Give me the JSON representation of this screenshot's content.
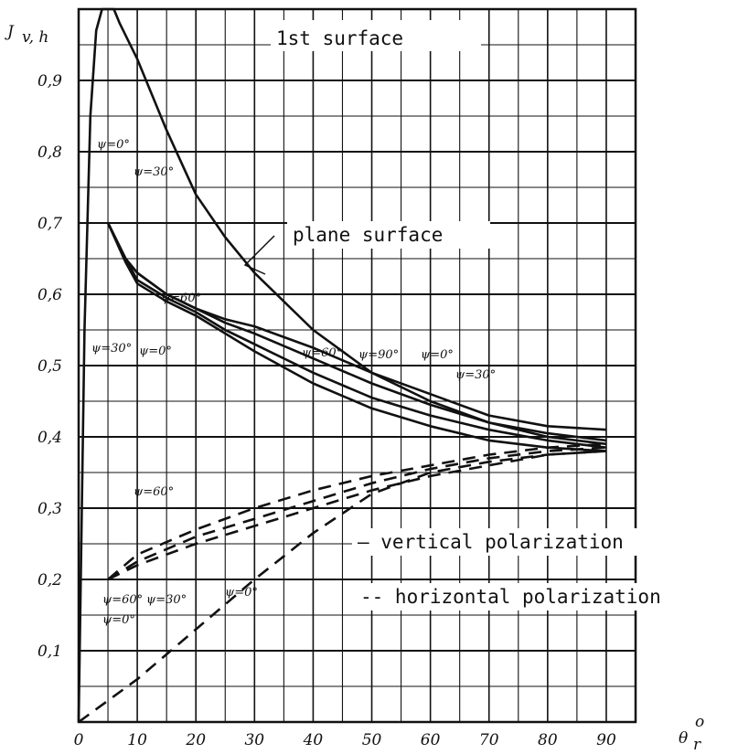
{
  "chart_data": {
    "type": "line",
    "ylabel": "J",
    "ylabel_sub": "v, h",
    "xlabel": "θ",
    "xlabel_sub": "r",
    "xlabel_sup": "o",
    "xlim": [
      0,
      95
    ],
    "ylim": [
      0,
      1.0
    ],
    "x_ticks": [
      0,
      10,
      20,
      30,
      40,
      50,
      60,
      70,
      80,
      90
    ],
    "x_tick_labels": [
      "0",
      "10",
      "20",
      "30",
      "40",
      "50",
      "60",
      "70",
      "80",
      "90"
    ],
    "y_ticks": [
      0.1,
      0.2,
      0.3,
      0.4,
      0.5,
      0.6,
      0.7,
      0.8,
      0.9
    ],
    "y_tick_labels": [
      "0,1",
      "0,2",
      "0,3",
      "0,4",
      "0,5",
      "0,6",
      "0,7",
      "0,8",
      "0,9"
    ],
    "grid": true,
    "annotations": {
      "first_surface": "1st surface",
      "plane_surface": "plane surface",
      "legend_vertical": "— vertical polarization",
      "legend_horizontal": "-- horizontal polarization"
    },
    "curve_labels": [
      "ψ=0°",
      "ψ=30°",
      "ψ=60°",
      "ψ=30°",
      "ψ=0°",
      "ψ=60°",
      "ψ=90°",
      "ψ=0°",
      "ψ=30°",
      "ψ=60°",
      "ψ=60°",
      "ψ=30°",
      "ψ=0°",
      "ψ=0°"
    ],
    "series": [
      {
        "style": "solid",
        "x": [
          0,
          1,
          2,
          3,
          4,
          5,
          6,
          7,
          10,
          15,
          20,
          25,
          30,
          40,
          50,
          60,
          70,
          80,
          90
        ],
        "y": [
          0.0,
          0.55,
          0.85,
          0.97,
          1.0,
          1.0,
          1.0,
          0.98,
          0.93,
          0.83,
          0.74,
          0.68,
          0.63,
          0.55,
          0.49,
          0.45,
          0.42,
          0.4,
          0.39
        ]
      },
      {
        "style": "solid",
        "x": [
          5,
          8,
          10,
          15,
          20,
          25,
          30,
          40,
          50,
          60,
          70,
          80,
          90
        ],
        "y": [
          0.7,
          0.65,
          0.63,
          0.6,
          0.58,
          0.565,
          0.555,
          0.525,
          0.49,
          0.46,
          0.43,
          0.415,
          0.41
        ]
      },
      {
        "style": "solid",
        "x": [
          5,
          8,
          10,
          15,
          20,
          25,
          30,
          40,
          50,
          60,
          70,
          80,
          90
        ],
        "y": [
          0.7,
          0.65,
          0.63,
          0.6,
          0.58,
          0.56,
          0.545,
          0.51,
          0.475,
          0.445,
          0.42,
          0.405,
          0.395
        ]
      },
      {
        "style": "solid",
        "x": [
          5,
          8,
          10,
          15,
          20,
          25,
          30,
          40,
          50,
          60,
          70,
          80,
          90
        ],
        "y": [
          0.7,
          0.65,
          0.62,
          0.595,
          0.575,
          0.55,
          0.53,
          0.49,
          0.455,
          0.43,
          0.41,
          0.395,
          0.385
        ]
      },
      {
        "style": "solid",
        "x": [
          5,
          8,
          10,
          15,
          20,
          25,
          30,
          40,
          50,
          60,
          70,
          80,
          90
        ],
        "y": [
          0.7,
          0.645,
          0.615,
          0.59,
          0.57,
          0.545,
          0.52,
          0.475,
          0.44,
          0.415,
          0.395,
          0.385,
          0.38
        ]
      },
      {
        "style": "dashed",
        "x": [
          5,
          10,
          20,
          30,
          40,
          50,
          60,
          70,
          80,
          90
        ],
        "y": [
          0.2,
          0.235,
          0.27,
          0.3,
          0.325,
          0.345,
          0.36,
          0.375,
          0.385,
          0.39
        ]
      },
      {
        "style": "dashed",
        "x": [
          5,
          10,
          20,
          30,
          40,
          50,
          60,
          70,
          80,
          90
        ],
        "y": [
          0.2,
          0.225,
          0.26,
          0.285,
          0.31,
          0.335,
          0.355,
          0.37,
          0.38,
          0.385
        ]
      },
      {
        "style": "dashed",
        "x": [
          5,
          10,
          20,
          30,
          40,
          50,
          60,
          70,
          80,
          90
        ],
        "y": [
          0.2,
          0.22,
          0.25,
          0.275,
          0.3,
          0.325,
          0.345,
          0.36,
          0.375,
          0.38
        ]
      },
      {
        "style": "dashed",
        "x": [
          0,
          10,
          20,
          30,
          40,
          50,
          60,
          70,
          80,
          90
        ],
        "y": [
          0.0,
          0.06,
          0.13,
          0.2,
          0.265,
          0.32,
          0.35,
          0.365,
          0.375,
          0.38
        ]
      }
    ]
  }
}
